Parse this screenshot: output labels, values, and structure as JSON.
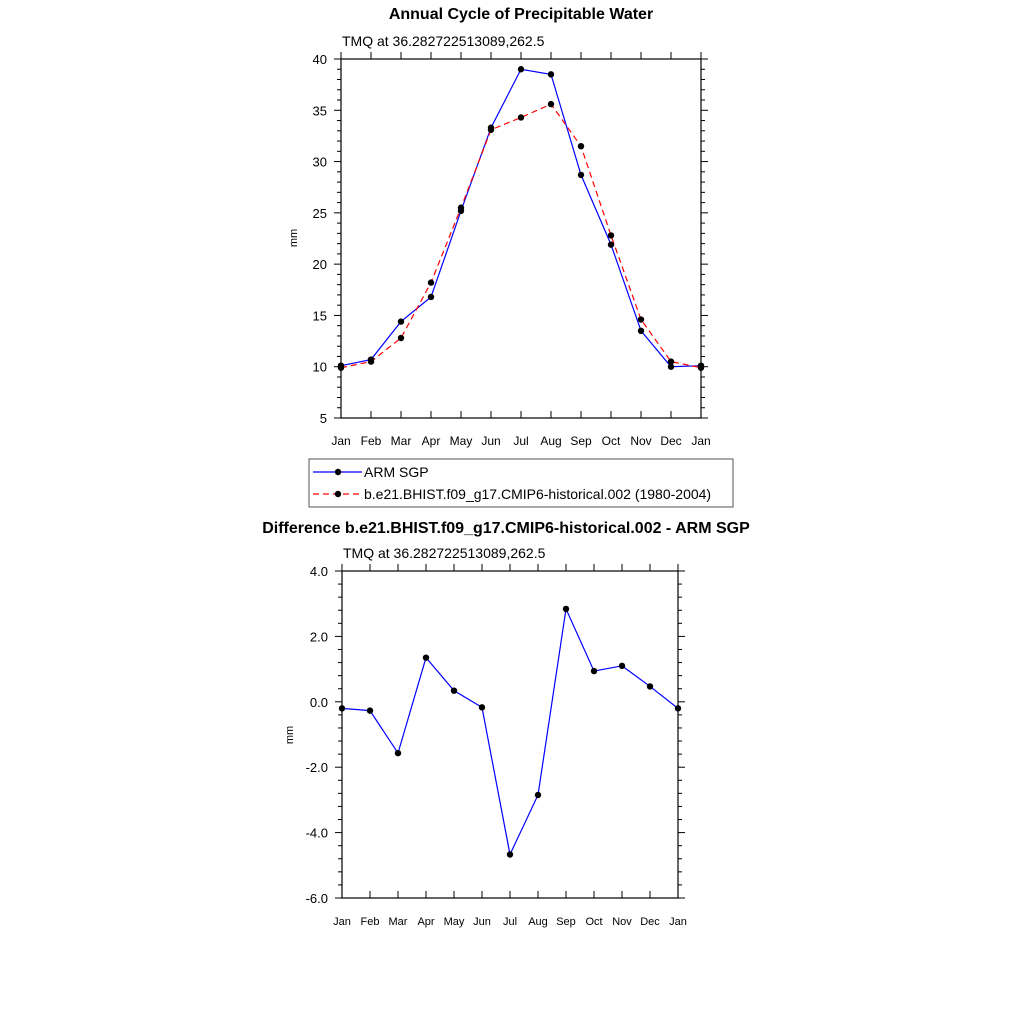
{
  "chart_data": [
    {
      "type": "line",
      "title": "Annual Cycle of Precipitable Water",
      "subtitle": "TMQ at 36.282722513089,262.5",
      "xlabel": "",
      "ylabel": "mm",
      "categories": [
        "Jan",
        "Feb",
        "Mar",
        "Apr",
        "May",
        "Jun",
        "Jul",
        "Aug",
        "Sep",
        "Oct",
        "Nov",
        "Dec",
        "Jan"
      ],
      "ylim": [
        5,
        40
      ],
      "yticks": [
        "5",
        "10",
        "15",
        "20",
        "25",
        "30",
        "35",
        "40"
      ],
      "ytick_values": [
        5,
        10,
        15,
        20,
        25,
        30,
        35,
        40
      ],
      "series": [
        {
          "name": "ARM SGP",
          "color": "#0000ff",
          "dash": false,
          "values": [
            10.1,
            10.7,
            14.4,
            16.8,
            25.2,
            33.3,
            39.0,
            38.5,
            28.7,
            21.9,
            13.5,
            10.0,
            10.1
          ]
        },
        {
          "name": "b.e21.BHIST.f09_g17.CMIP6-historical.002 (1980-2004)",
          "color": "#ff0000",
          "dash": true,
          "values": [
            9.9,
            10.5,
            12.8,
            18.2,
            25.5,
            33.1,
            34.3,
            35.6,
            31.5,
            22.8,
            14.6,
            10.5,
            9.9
          ]
        }
      ],
      "legend": "below"
    },
    {
      "type": "line",
      "title": "Difference b.e21.BHIST.f09_g17.CMIP6-historical.002 - ARM SGP",
      "subtitle": "TMQ at 36.282722513089,262.5",
      "xlabel": "",
      "ylabel": "mm",
      "categories": [
        "Jan",
        "Feb",
        "Mar",
        "Apr",
        "May",
        "Jun",
        "Jul",
        "Aug",
        "Sep",
        "Oct",
        "Nov",
        "Dec",
        "Jan"
      ],
      "ylim": [
        -6,
        4
      ],
      "yticks": [
        "-6.0",
        "-4.0",
        "-2.0",
        "0.0",
        "2.0",
        "4.0"
      ],
      "ytick_values": [
        -6,
        -4,
        -2,
        0,
        2,
        4
      ],
      "series": [
        {
          "name": "Difference",
          "color": "#0000ff",
          "values": [
            -0.2,
            -0.27,
            -1.57,
            1.35,
            0.34,
            -0.17,
            -4.67,
            -2.85,
            2.84,
            0.94,
            1.1,
            0.47,
            -0.2
          ]
        }
      ]
    }
  ]
}
